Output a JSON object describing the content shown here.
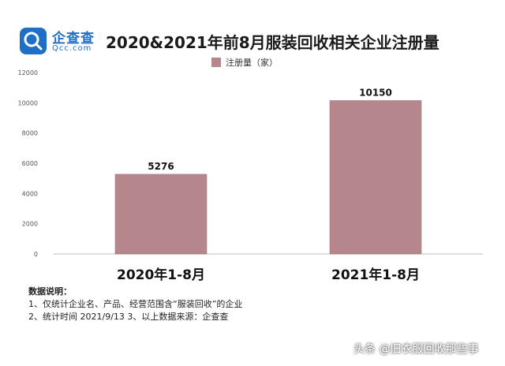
{
  "header": {
    "logo_text": "企查查",
    "logo_sub": "Qcc.com",
    "title": "2020&2021年前8月服装回收相关企业注册量"
  },
  "legend": {
    "label": "注册量（家）",
    "color": "#b5878c"
  },
  "chart_data": {
    "type": "bar",
    "title": "2020&2021年前8月服装回收相关企业注册量",
    "categories": [
      "2020年1-8月",
      "2021年1-8月"
    ],
    "series": [
      {
        "name": "注册量（家）",
        "values": [
          5276,
          10150
        ],
        "color": "#b5878c"
      }
    ],
    "data_labels": [
      "5276",
      "10150"
    ],
    "yticks": [
      0,
      2000,
      4000,
      6000,
      8000,
      10000,
      12000
    ],
    "ylim": [
      0,
      12000
    ],
    "xlabel": "",
    "ylabel": "",
    "grid": false,
    "legend_position": "top"
  },
  "notes": {
    "title": "数据说明：",
    "line1": "1、仅统计企业名、产品、经营范围含“服装回收”的企业",
    "line2": "2、统计时间  2021/9/13        3、以上数据来源：企查查"
  },
  "watermark": "头条 @旧衣服回收那些事"
}
